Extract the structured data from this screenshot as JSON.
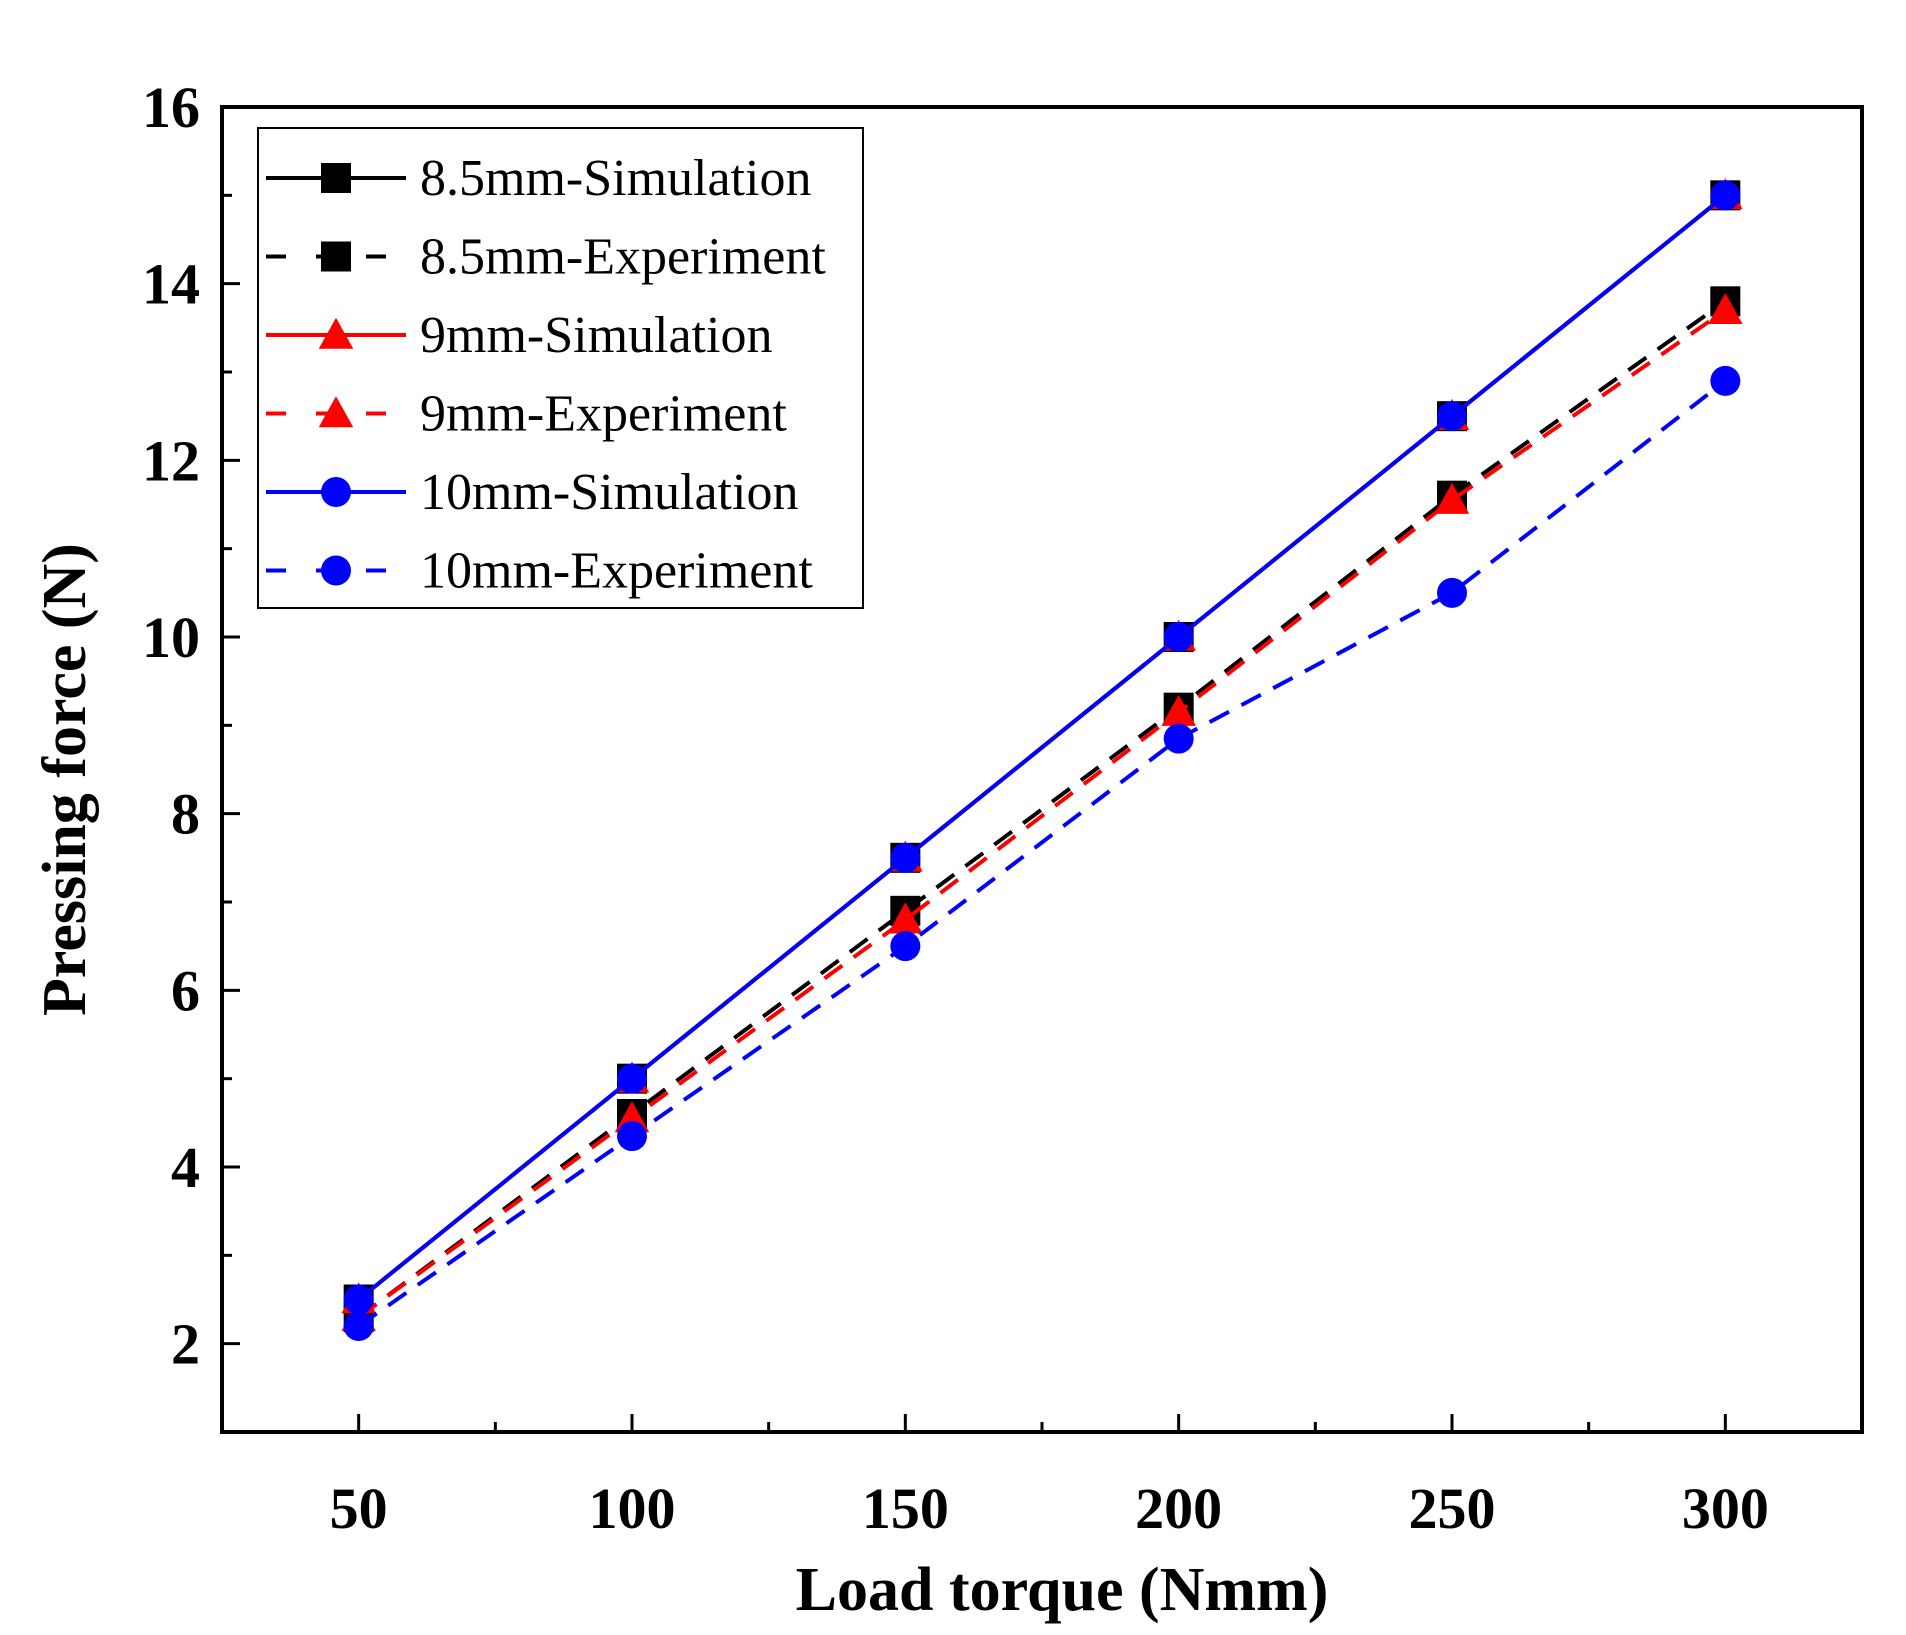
{
  "chart_data": {
    "type": "line",
    "title": "",
    "xlabel": "Load torque (Nmm)",
    "ylabel": "Pressing force (N)",
    "xlim": [
      25,
      325
    ],
    "ylim": [
      1,
      16
    ],
    "xticks": [
      50,
      100,
      150,
      200,
      250,
      300
    ],
    "yticks": [
      2,
      4,
      6,
      8,
      10,
      12,
      14,
      16
    ],
    "x_tick_labels": [
      "50",
      "100",
      "150",
      "200",
      "250",
      "300"
    ],
    "y_tick_labels": [
      "2",
      "4",
      "6",
      "8",
      "10",
      "12",
      "14",
      "16"
    ],
    "grid": false,
    "legend_position": "top-left",
    "x": [
      50,
      100,
      150,
      200,
      250,
      300
    ],
    "series": [
      {
        "name": "8.5mm-Simulation",
        "values": [
          2.5,
          5.0,
          7.5,
          10.0,
          12.5,
          15.0
        ],
        "color": "#000000",
        "dash": "solid",
        "marker": "square"
      },
      {
        "name": "8.5mm-Experiment",
        "values": [
          2.3,
          4.6,
          6.9,
          9.2,
          11.6,
          13.8
        ],
        "color": "#000000",
        "dash": "dashed",
        "marker": "square"
      },
      {
        "name": "9mm-Simulation",
        "values": [
          2.5,
          5.0,
          7.5,
          10.0,
          12.5,
          15.0
        ],
        "color": "#ff0000",
        "dash": "solid",
        "marker": "triangle"
      },
      {
        "name": "9mm-Experiment",
        "values": [
          2.3,
          4.55,
          6.8,
          9.15,
          11.55,
          13.7
        ],
        "color": "#ff0000",
        "dash": "dashed",
        "marker": "triangle"
      },
      {
        "name": "10mm-Simulation",
        "values": [
          2.5,
          5.0,
          7.5,
          10.0,
          12.5,
          15.0
        ],
        "color": "#0000ff",
        "dash": "solid",
        "marker": "circle"
      },
      {
        "name": "10mm-Experiment",
        "values": [
          2.2,
          4.35,
          6.5,
          8.85,
          10.5,
          12.9
        ],
        "color": "#0000ff",
        "dash": "dashed",
        "marker": "circle"
      }
    ]
  }
}
